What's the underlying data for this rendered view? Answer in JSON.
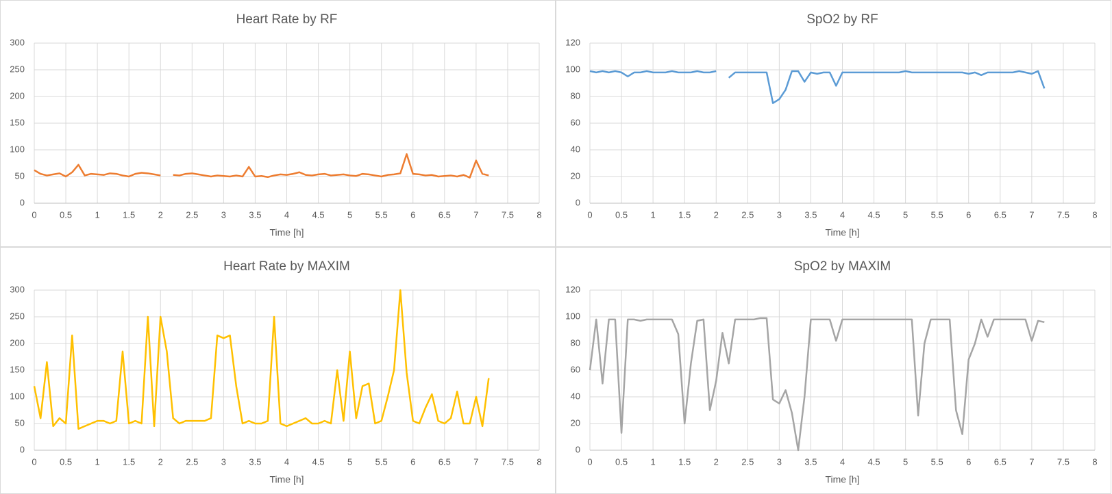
{
  "chart_data": [
    {
      "type": "line",
      "title": "Heart Rate by RF",
      "x_label": "Time [h]",
      "color": "#ED7D31",
      "x": [
        0,
        0.1,
        0.2,
        0.3,
        0.4,
        0.5,
        0.6,
        0.7,
        0.8,
        0.9,
        1,
        1.1,
        1.2,
        1.3,
        1.4,
        1.5,
        1.6,
        1.7,
        1.8,
        1.9,
        2,
        2.1,
        2.2,
        2.3,
        2.4,
        2.5,
        2.6,
        2.7,
        2.8,
        2.9,
        3,
        3.1,
        3.2,
        3.3,
        3.4,
        3.5,
        3.6,
        3.7,
        3.8,
        3.9,
        4,
        4.1,
        4.2,
        4.3,
        4.4,
        4.5,
        4.6,
        4.7,
        4.8,
        4.9,
        5,
        5.1,
        5.2,
        5.3,
        5.4,
        5.5,
        5.6,
        5.7,
        5.8,
        5.9,
        6,
        6.1,
        6.2,
        6.3,
        6.4,
        6.5,
        6.6,
        6.7,
        6.8,
        6.9,
        7,
        7.1,
        7.2
      ],
      "values": [
        62,
        55,
        52,
        54,
        56,
        50,
        58,
        72,
        52,
        55,
        54,
        53,
        56,
        55,
        52,
        50,
        55,
        57,
        56,
        54,
        52,
        null,
        53,
        52,
        55,
        56,
        54,
        52,
        50,
        52,
        51,
        50,
        52,
        50,
        68,
        50,
        51,
        49,
        52,
        54,
        53,
        55,
        58,
        53,
        52,
        54,
        55,
        52,
        53,
        54,
        52,
        51,
        55,
        54,
        52,
        50,
        53,
        54,
        56,
        92,
        55,
        54,
        52,
        53,
        50,
        51,
        52,
        50,
        53,
        48,
        80,
        55,
        52
      ],
      "xlim": [
        0,
        8
      ],
      "xticks": [
        0,
        0.5,
        1,
        1.5,
        2,
        2.5,
        3,
        3.5,
        4,
        4.5,
        5,
        5.5,
        6,
        6.5,
        7,
        7.5,
        8
      ],
      "ylim": [
        0,
        300
      ],
      "yticks": [
        0,
        50,
        100,
        150,
        200,
        250,
        300
      ],
      "grid": true
    },
    {
      "type": "line",
      "title": "SpO2 by RF",
      "x_label": "Time [h]",
      "color": "#5B9BD5",
      "x": [
        0,
        0.1,
        0.2,
        0.3,
        0.4,
        0.5,
        0.6,
        0.7,
        0.8,
        0.9,
        1,
        1.1,
        1.2,
        1.3,
        1.4,
        1.5,
        1.6,
        1.7,
        1.8,
        1.9,
        2,
        2.1,
        2.2,
        2.3,
        2.4,
        2.5,
        2.6,
        2.7,
        2.8,
        2.9,
        3,
        3.1,
        3.2,
        3.3,
        3.4,
        3.5,
        3.6,
        3.7,
        3.8,
        3.9,
        4,
        4.1,
        4.2,
        4.3,
        4.4,
        4.5,
        4.6,
        4.7,
        4.8,
        4.9,
        5,
        5.1,
        5.2,
        5.3,
        5.4,
        5.5,
        5.6,
        5.7,
        5.8,
        5.9,
        6,
        6.1,
        6.2,
        6.3,
        6.4,
        6.5,
        6.6,
        6.7,
        6.8,
        6.9,
        7,
        7.1,
        7.2
      ],
      "values": [
        99,
        98,
        99,
        98,
        99,
        98,
        95,
        98,
        98,
        99,
        98,
        98,
        98,
        99,
        98,
        98,
        98,
        99,
        98,
        98,
        99,
        null,
        94,
        98,
        98,
        98,
        98,
        98,
        98,
        75,
        78,
        85,
        99,
        99,
        91,
        98,
        97,
        98,
        98,
        88,
        98,
        98,
        98,
        98,
        98,
        98,
        98,
        98,
        98,
        98,
        99,
        98,
        98,
        98,
        98,
        98,
        98,
        98,
        98,
        98,
        97,
        98,
        96,
        98,
        98,
        98,
        98,
        98,
        99,
        98,
        97,
        99,
        86
      ],
      "xlim": [
        0,
        8
      ],
      "xticks": [
        0,
        0.5,
        1,
        1.5,
        2,
        2.5,
        3,
        3.5,
        4,
        4.5,
        5,
        5.5,
        6,
        6.5,
        7,
        7.5,
        8
      ],
      "ylim": [
        0,
        120
      ],
      "yticks": [
        0,
        20,
        40,
        60,
        80,
        100,
        120
      ],
      "grid": true
    },
    {
      "type": "line",
      "title": "Heart Rate by MAXIM",
      "x_label": "Time [h]",
      "color": "#FFC000",
      "x": [
        0,
        0.1,
        0.2,
        0.3,
        0.4,
        0.5,
        0.6,
        0.7,
        0.8,
        0.9,
        1,
        1.1,
        1.2,
        1.3,
        1.4,
        1.5,
        1.6,
        1.7,
        1.8,
        1.9,
        2,
        2.1,
        2.2,
        2.3,
        2.4,
        2.5,
        2.6,
        2.7,
        2.8,
        2.9,
        3,
        3.1,
        3.2,
        3.3,
        3.4,
        3.5,
        3.6,
        3.7,
        3.8,
        3.9,
        4,
        4.1,
        4.2,
        4.3,
        4.4,
        4.5,
        4.6,
        4.7,
        4.8,
        4.9,
        5,
        5.1,
        5.2,
        5.3,
        5.4,
        5.5,
        5.6,
        5.7,
        5.8,
        5.9,
        6,
        6.1,
        6.2,
        6.3,
        6.4,
        6.5,
        6.6,
        6.7,
        6.8,
        6.9,
        7,
        7.1,
        7.2
      ],
      "values": [
        120,
        60,
        165,
        45,
        60,
        50,
        215,
        40,
        45,
        50,
        55,
        55,
        50,
        55,
        185,
        50,
        55,
        50,
        250,
        45,
        250,
        185,
        60,
        50,
        55,
        55,
        55,
        55,
        60,
        215,
        210,
        215,
        120,
        50,
        55,
        50,
        50,
        55,
        250,
        50,
        45,
        50,
        55,
        60,
        50,
        50,
        55,
        50,
        150,
        55,
        185,
        60,
        120,
        125,
        50,
        55,
        100,
        150,
        300,
        145,
        55,
        50,
        80,
        105,
        55,
        50,
        60,
        110,
        50,
        50,
        100,
        45,
        135
      ],
      "xlim": [
        0,
        8
      ],
      "xticks": [
        0,
        0.5,
        1,
        1.5,
        2,
        2.5,
        3,
        3.5,
        4,
        4.5,
        5,
        5.5,
        6,
        6.5,
        7,
        7.5,
        8
      ],
      "ylim": [
        0,
        300
      ],
      "yticks": [
        0,
        50,
        100,
        150,
        200,
        250,
        300
      ],
      "grid": true
    },
    {
      "type": "line",
      "title": "SpO2 by MAXIM",
      "x_label": "Time [h]",
      "color": "#A5A5A5",
      "x": [
        0,
        0.1,
        0.2,
        0.3,
        0.4,
        0.5,
        0.6,
        0.7,
        0.8,
        0.9,
        1,
        1.1,
        1.2,
        1.3,
        1.4,
        1.5,
        1.6,
        1.7,
        1.8,
        1.9,
        2,
        2.1,
        2.2,
        2.3,
        2.4,
        2.5,
        2.6,
        2.7,
        2.8,
        2.9,
        3,
        3.1,
        3.2,
        3.3,
        3.4,
        3.5,
        3.6,
        3.7,
        3.8,
        3.9,
        4,
        4.1,
        4.2,
        4.3,
        4.4,
        4.5,
        4.6,
        4.7,
        4.8,
        4.9,
        5,
        5.1,
        5.2,
        5.3,
        5.4,
        5.5,
        5.6,
        5.7,
        5.8,
        5.9,
        6,
        6.1,
        6.2,
        6.3,
        6.4,
        6.5,
        6.6,
        6.7,
        6.8,
        6.9,
        7,
        7.1,
        7.2
      ],
      "values": [
        60,
        98,
        50,
        98,
        98,
        13,
        98,
        98,
        97,
        98,
        98,
        98,
        98,
        98,
        87,
        20,
        65,
        97,
        98,
        30,
        52,
        88,
        65,
        98,
        98,
        98,
        98,
        99,
        99,
        38,
        35,
        45,
        28,
        0,
        40,
        98,
        98,
        98,
        98,
        82,
        98,
        98,
        98,
        98,
        98,
        98,
        98,
        98,
        98,
        98,
        98,
        98,
        26,
        80,
        98,
        98,
        98,
        98,
        30,
        12,
        68,
        80,
        98,
        85,
        98,
        98,
        98,
        98,
        98,
        98,
        82,
        97,
        96
      ],
      "xlim": [
        0,
        8
      ],
      "xticks": [
        0,
        0.5,
        1,
        1.5,
        2,
        2.5,
        3,
        3.5,
        4,
        4.5,
        5,
        5.5,
        6,
        6.5,
        7,
        7.5,
        8
      ],
      "ylim": [
        0,
        120
      ],
      "yticks": [
        0,
        20,
        40,
        60,
        80,
        100,
        120
      ],
      "grid": true
    }
  ]
}
